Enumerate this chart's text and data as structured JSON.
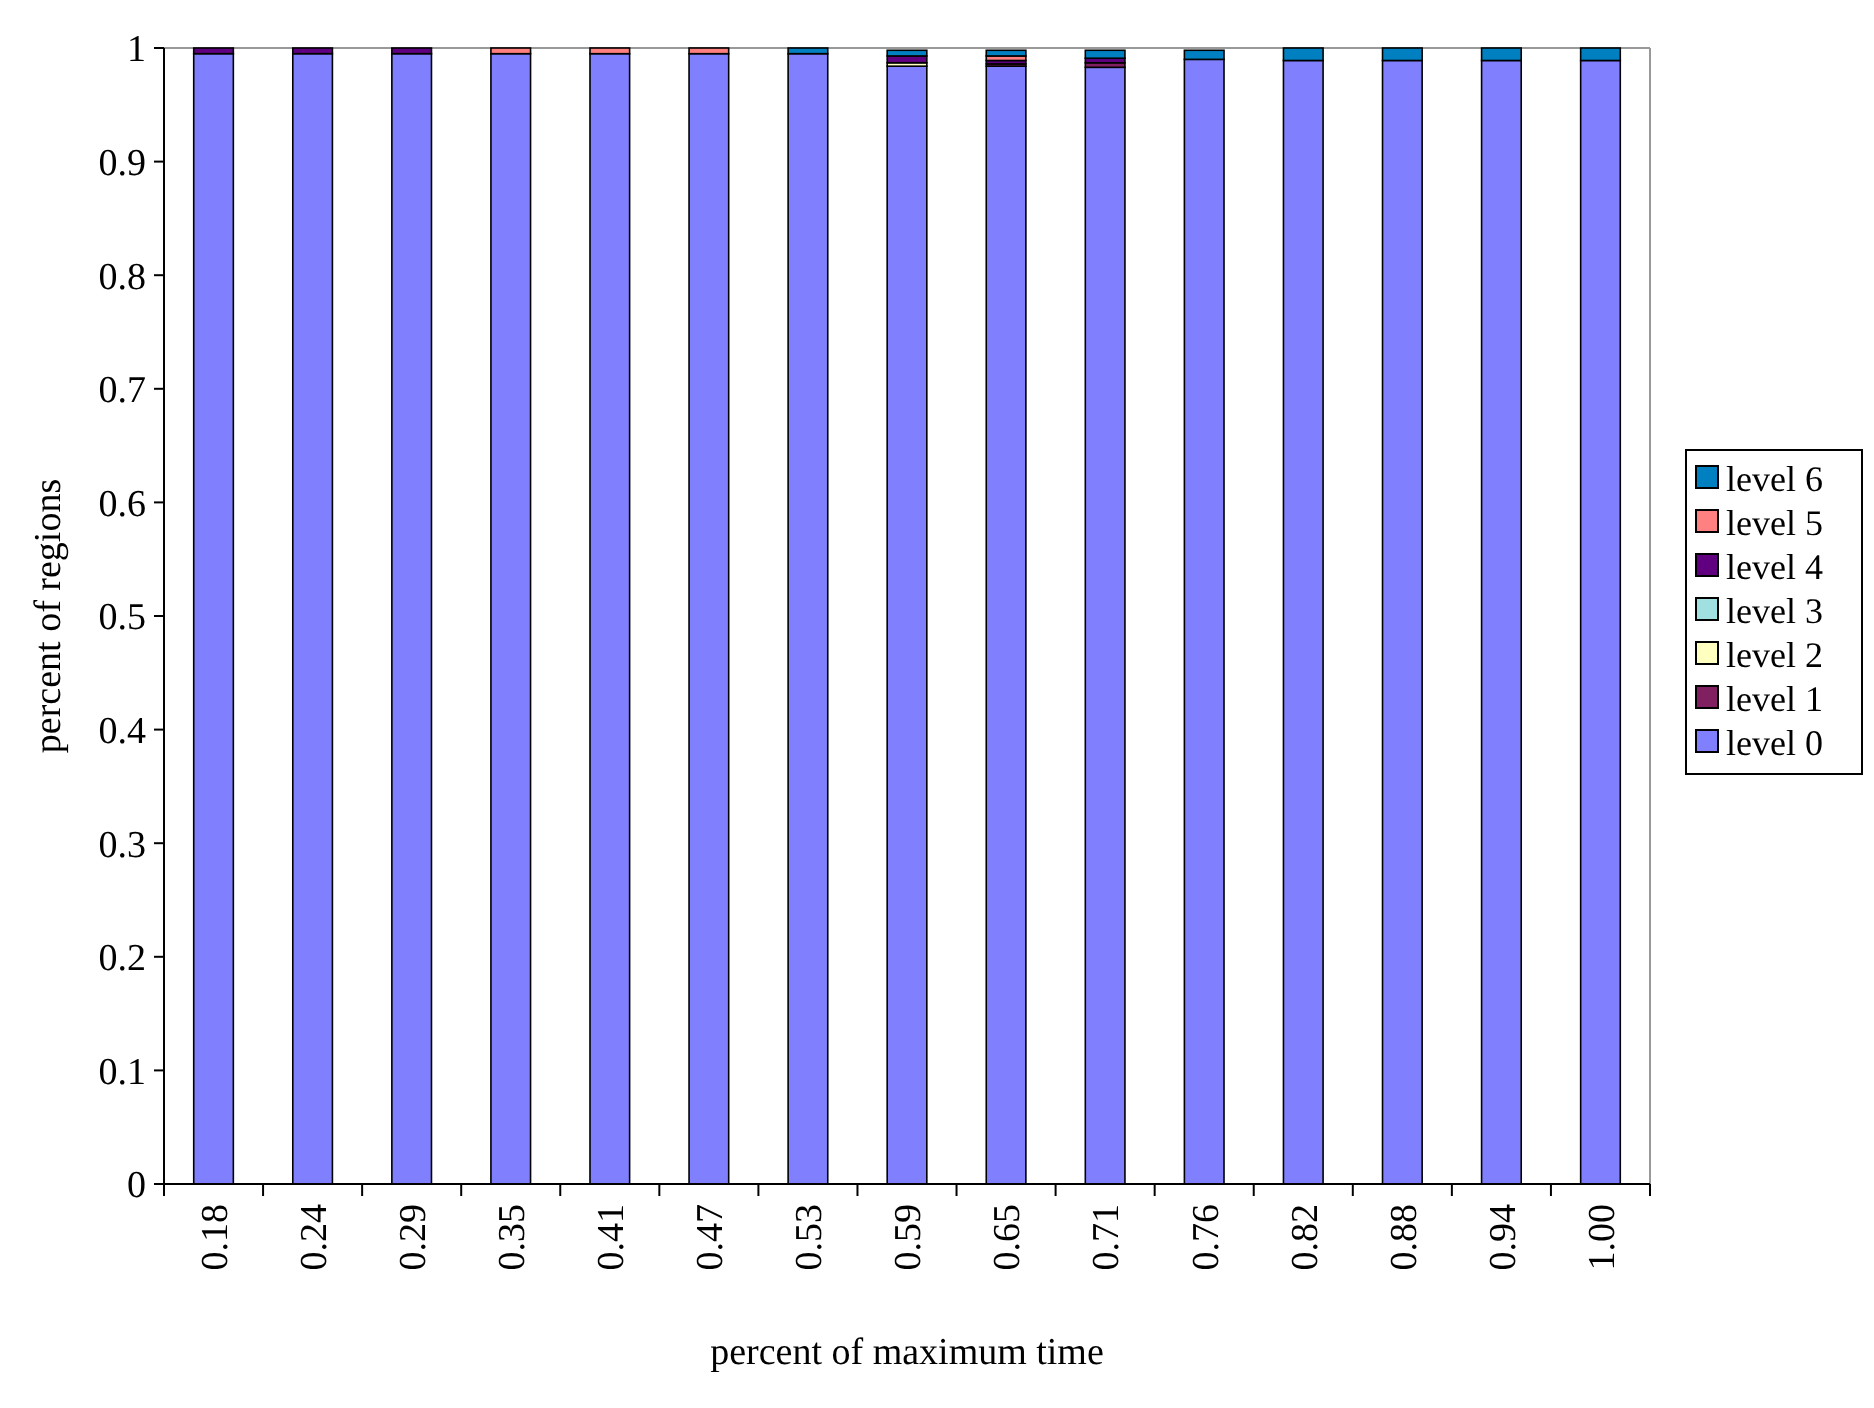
{
  "chart_data": {
    "type": "bar",
    "stacked": true,
    "xlabel": "percent of maximum time",
    "ylabel": "percent of regions",
    "categories": [
      "0.18",
      "0.24",
      "0.29",
      "0.35",
      "0.41",
      "0.47",
      "0.53",
      "0.59",
      "0.65",
      "0.71",
      "0.76",
      "0.82",
      "0.88",
      "0.94",
      "1.00"
    ],
    "series": [
      {
        "name": "level 0",
        "color": "#8080ff",
        "values": [
          0.995,
          0.995,
          0.995,
          0.995,
          0.995,
          0.995,
          0.995,
          0.984,
          0.984,
          0.983,
          0.99,
          0.989,
          0.989,
          0.989,
          0.989
        ]
      },
      {
        "name": "level 1",
        "color": "#802060",
        "values": [
          0,
          0,
          0,
          0,
          0,
          0,
          0,
          0,
          0.002,
          0.004,
          0,
          0,
          0,
          0,
          0
        ]
      },
      {
        "name": "level 2",
        "color": "#ffffc0",
        "values": [
          0,
          0,
          0,
          0,
          0,
          0,
          0,
          0.003,
          0,
          0,
          0,
          0,
          0,
          0,
          0
        ]
      },
      {
        "name": "level 3",
        "color": "#a0e0e0",
        "values": [
          0,
          0,
          0,
          0,
          0,
          0,
          0,
          null,
          null,
          0,
          0,
          0,
          0,
          0,
          0
        ]
      },
      {
        "name": "level 4",
        "color": "#600080",
        "values": [
          0.005,
          0.005,
          0.005,
          0,
          0,
          0,
          0,
          0.006,
          0.003,
          0.004,
          0,
          0,
          0,
          0,
          0
        ]
      },
      {
        "name": "level 5",
        "color": "#ff8080",
        "values": [
          0,
          0,
          0,
          0.005,
          0.005,
          0.005,
          0,
          0,
          0.004,
          null,
          null,
          0,
          0,
          0,
          0
        ]
      },
      {
        "name": "level 6",
        "color": "#0080c0",
        "values": [
          0,
          0,
          0,
          0,
          0,
          0,
          0.005,
          0.005,
          0.005,
          0.007,
          0.008,
          0.011,
          0.011,
          0.011,
          0.011
        ]
      }
    ],
    "ylim": [
      0,
      1
    ],
    "yticks": [
      0,
      0.1,
      0.2,
      0.3,
      0.4,
      0.5,
      0.6,
      0.7,
      0.8,
      0.9,
      1
    ],
    "grid": false,
    "legend": "right"
  }
}
